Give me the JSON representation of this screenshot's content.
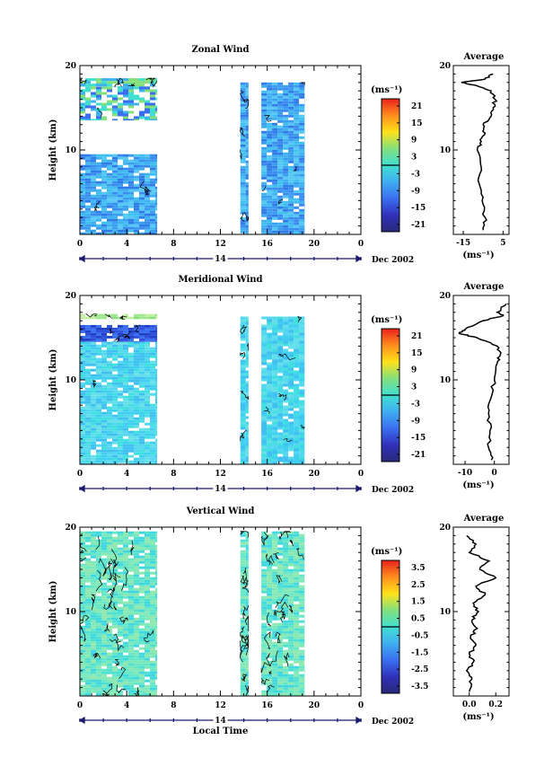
{
  "chart_data": [
    {
      "type": "heatmap",
      "title": "Zonal Wind",
      "ylabel": "Height (km)",
      "ylim": [
        0,
        20
      ],
      "y_ticks": [
        10,
        20
      ],
      "x_ticks": [
        "0",
        "4",
        "8",
        "12",
        "16",
        "20",
        "0"
      ],
      "xlim": [
        0,
        24
      ],
      "date_label": "14",
      "month_label": "Dec 2002",
      "colorbar": {
        "unit": "(ms⁻¹)",
        "ticks": [
          "21",
          "15",
          "9",
          "3",
          "-3",
          "-9",
          "-15",
          "-21"
        ]
      },
      "data_blocks": [
        {
          "t": [
            0,
            6.6
          ],
          "h": [
            17.5,
            18.5
          ],
          "level": "cyan"
        },
        {
          "t": [
            0,
            6.6
          ],
          "h": [
            13.5,
            17.5
          ],
          "level": "mixed-light"
        },
        {
          "t": [
            0,
            6.6
          ],
          "h": [
            0,
            9.5
          ],
          "level": "-6"
        },
        {
          "t": [
            13.7,
            14.4
          ],
          "h": [
            0,
            18
          ],
          "level": "-6"
        },
        {
          "t": [
            15.5,
            19.2
          ],
          "h": [
            0,
            18
          ],
          "level": "-6"
        }
      ],
      "average": {
        "title": "Average",
        "xlabel": "(ms⁻¹)",
        "x_ticks": [
          "-15",
          "5"
        ],
        "xlim": [
          -20,
          8
        ],
        "y_ticks": [
          10,
          20
        ],
        "ylim": [
          0,
          20
        ],
        "profile": [
          [
            0.5,
            -5
          ],
          [
            2,
            -4
          ],
          [
            4,
            -5.5
          ],
          [
            6,
            -7
          ],
          [
            8,
            -6
          ],
          [
            10,
            -8
          ],
          [
            11,
            -6
          ],
          [
            12,
            -4
          ],
          [
            13,
            -5
          ],
          [
            14,
            -1
          ],
          [
            15,
            0
          ],
          [
            16,
            1
          ],
          [
            17,
            -1
          ],
          [
            17.6,
            -8
          ],
          [
            18,
            -16
          ],
          [
            18.4,
            -4
          ],
          [
            19,
            0
          ]
        ]
      }
    },
    {
      "type": "heatmap",
      "title": "Meridional Wind",
      "ylabel": "Height (km)",
      "ylim": [
        0,
        20
      ],
      "y_ticks": [
        10,
        20
      ],
      "x_ticks": [
        "0",
        "4",
        "8",
        "12",
        "16",
        "20",
        "0"
      ],
      "xlim": [
        0,
        24
      ],
      "date_label": "14",
      "month_label": "Dec 2002",
      "colorbar": {
        "unit": "(ms⁻¹)",
        "ticks": [
          "21",
          "15",
          "9",
          "3",
          "-3",
          "-9",
          "-15",
          "-21"
        ]
      },
      "data_blocks": [
        {
          "t": [
            0,
            6.6
          ],
          "h": [
            17.2,
            17.8
          ],
          "level": "green"
        },
        {
          "t": [
            0,
            6.6
          ],
          "h": [
            14.5,
            16.5
          ],
          "level": "blue"
        },
        {
          "t": [
            0,
            6.6
          ],
          "h": [
            0,
            14.5
          ],
          "level": "-3"
        },
        {
          "t": [
            13.7,
            14.4
          ],
          "h": [
            0,
            17.5
          ],
          "level": "-3"
        },
        {
          "t": [
            15.5,
            19.2
          ],
          "h": [
            0,
            17.5
          ],
          "level": "-3"
        }
      ],
      "average": {
        "title": "Average",
        "xlabel": "(ms⁻¹)",
        "x_ticks": [
          "-10",
          "0"
        ],
        "xlim": [
          -14,
          5
        ],
        "y_ticks": [
          10,
          20
        ],
        "ylim": [
          0,
          20
        ],
        "profile": [
          [
            0.5,
            -1
          ],
          [
            2,
            -2
          ],
          [
            4,
            -1.5
          ],
          [
            6,
            -2
          ],
          [
            8,
            -1
          ],
          [
            10,
            0
          ],
          [
            12,
            1
          ],
          [
            13,
            2
          ],
          [
            14,
            1
          ],
          [
            15,
            -6
          ],
          [
            15.5,
            -12
          ],
          [
            16,
            -10
          ],
          [
            17,
            -4
          ],
          [
            17.6,
            3
          ],
          [
            18,
            1
          ],
          [
            19,
            4
          ]
        ]
      }
    },
    {
      "type": "heatmap",
      "title": "Vertical Wind",
      "ylabel": "Height (km)",
      "xlabel": "Local Time",
      "ylim": [
        0,
        20
      ],
      "y_ticks": [
        10,
        20
      ],
      "x_ticks": [
        "0",
        "4",
        "8",
        "12",
        "16",
        "20",
        "0"
      ],
      "xlim": [
        0,
        24
      ],
      "date_label": "14",
      "month_label": "Dec 2002",
      "colorbar": {
        "unit": "(ms⁻¹)",
        "ticks": [
          "3.5",
          "2.5",
          "1.5",
          "0.5",
          "-0.5",
          "-1.5",
          "-2.5",
          "-3.5"
        ]
      },
      "data_blocks": [
        {
          "t": [
            0,
            6.6
          ],
          "h": [
            0,
            19.5
          ],
          "level": "0"
        },
        {
          "t": [
            13.7,
            14.4
          ],
          "h": [
            0,
            19.5
          ],
          "level": "0"
        },
        {
          "t": [
            15.5,
            19.2
          ],
          "h": [
            0,
            19.5
          ],
          "level": "0"
        }
      ],
      "average": {
        "title": "Average",
        "xlabel": "(ms⁻¹)",
        "x_ticks": [
          "0.0",
          "0.2"
        ],
        "xlim": [
          -0.12,
          0.3
        ],
        "y_ticks": [
          10,
          20
        ],
        "ylim": [
          0,
          20
        ],
        "profile": [
          [
            0.5,
            0.0
          ],
          [
            2,
            0.02
          ],
          [
            3,
            -0.02
          ],
          [
            4,
            0.03
          ],
          [
            5,
            0.0
          ],
          [
            6,
            0.05
          ],
          [
            7,
            0.01
          ],
          [
            8,
            0.06
          ],
          [
            9,
            0.02
          ],
          [
            10,
            0.07
          ],
          [
            11,
            0.03
          ],
          [
            12,
            0.12
          ],
          [
            13,
            0.05
          ],
          [
            14,
            0.2
          ],
          [
            15,
            0.08
          ],
          [
            16,
            0.15
          ],
          [
            17,
            0.0
          ],
          [
            18,
            0.05
          ],
          [
            19,
            -0.02
          ]
        ]
      }
    }
  ]
}
